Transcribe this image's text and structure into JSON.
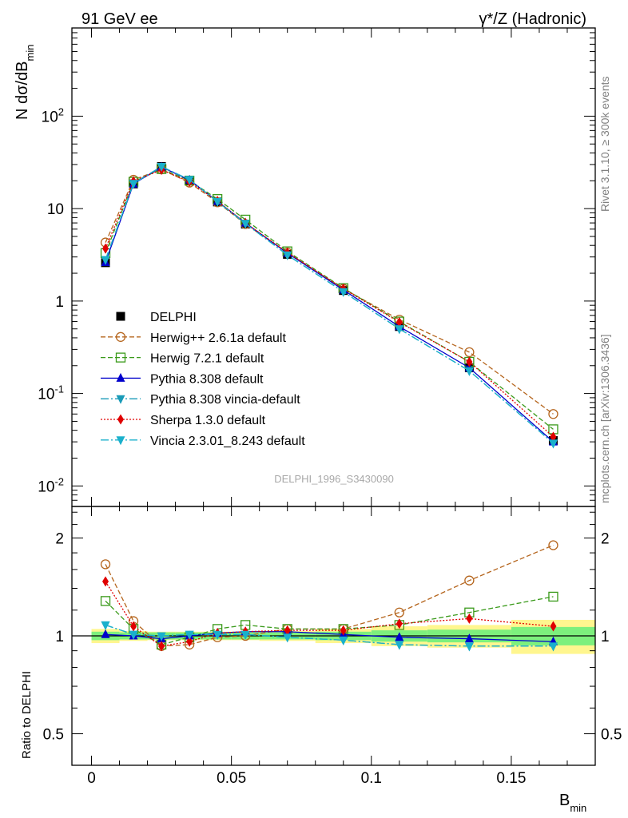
{
  "header": {
    "left_title": "91 GeV ee",
    "right_title": "γ*/Z (Hadronic)"
  },
  "side_labels": {
    "rivet": "Rivet 3.1.10, ≥ 300k events",
    "mcplots": "mcplots.cern.ch [arXiv:1306.3436]"
  },
  "watermark": "DELPHI_1996_S3430090",
  "colors": {
    "data": "#000000",
    "herwigpp": "#b5651d",
    "herwig7": "#3a9a1a",
    "pythia": "#0000cc",
    "vincia_default": "#1a9bb8",
    "sherpa": "#e00000",
    "vincia": "#1ab0cc",
    "band_inner": "#7df07d",
    "band_outer": "#fff68f"
  },
  "chart_data": [
    {
      "type": "line",
      "panel": "main",
      "ylabel": "N dσ/dB_min",
      "yscale": "log",
      "ylim": [
        0.006,
        900
      ],
      "xlim": [
        -0.007,
        0.18
      ],
      "ytick_labels": [
        "10^-2",
        "10^-1",
        "1",
        "10",
        "10^2"
      ],
      "x": [
        0.005,
        0.015,
        0.025,
        0.035,
        0.045,
        0.055,
        0.07,
        0.09,
        0.11,
        0.135,
        0.165
      ],
      "series": [
        {
          "name": "DELPHI",
          "values": [
            2.6,
            18.5,
            28.5,
            20.3,
            11.8,
            6.8,
            3.2,
            1.3,
            0.53,
            0.19,
            0.031
          ]
        },
        {
          "name": "Herwig++ 2.6.1a default",
          "values": [
            4.3,
            20.5,
            26.6,
            19.1,
            11.7,
            6.8,
            3.35,
            1.36,
            0.63,
            0.28,
            0.06
          ]
        },
        {
          "name": "Herwig 7.2.1 default",
          "values": [
            3.3,
            19.5,
            26.8,
            20.1,
            12.7,
            7.6,
            3.45,
            1.38,
            0.6,
            0.22,
            0.041
          ]
        },
        {
          "name": "Pythia 8.308 default",
          "values": [
            2.62,
            18.5,
            28.2,
            20.4,
            12.0,
            7.0,
            3.3,
            1.32,
            0.53,
            0.19,
            0.03
          ]
        },
        {
          "name": "Pythia 8.308 vincia-default",
          "values": [
            2.8,
            18.7,
            28.5,
            20.6,
            11.9,
            6.9,
            3.15,
            1.26,
            0.5,
            0.176,
            0.029
          ]
        },
        {
          "name": "Sherpa 1.3.0 default",
          "values": [
            3.7,
            19.8,
            26.3,
            19.5,
            12.1,
            7.0,
            3.35,
            1.36,
            0.59,
            0.22,
            0.034
          ]
        },
        {
          "name": "Vincia 2.3.01_8.243 default",
          "values": [
            2.8,
            18.7,
            28.5,
            20.6,
            11.9,
            6.9,
            3.15,
            1.26,
            0.5,
            0.176,
            0.029
          ]
        }
      ]
    },
    {
      "type": "line",
      "panel": "ratio",
      "ylabel": "Ratio to DELPHI",
      "xlabel": "B_min",
      "yscale": "log",
      "ylim": [
        0.4,
        2.5
      ],
      "xlim": [
        -0.007,
        0.18
      ],
      "yticks": [
        0.5,
        1,
        2
      ],
      "ytick_labels": [
        "0.5",
        "1",
        "2"
      ],
      "xticks": [
        0,
        0.05,
        0.1,
        0.15
      ],
      "xtick_labels": [
        "0",
        "0.05",
        "0.1",
        "0.15"
      ],
      "x": [
        0.005,
        0.015,
        0.025,
        0.035,
        0.045,
        0.055,
        0.07,
        0.09,
        0.11,
        0.135,
        0.165
      ],
      "bins": [
        [
          0,
          0.01
        ],
        [
          0.01,
          0.02
        ],
        [
          0.02,
          0.03
        ],
        [
          0.03,
          0.04
        ],
        [
          0.04,
          0.05
        ],
        [
          0.05,
          0.06
        ],
        [
          0.06,
          0.08
        ],
        [
          0.08,
          0.1
        ],
        [
          0.1,
          0.12
        ],
        [
          0.12,
          0.15
        ],
        [
          0.15,
          0.18
        ]
      ],
      "band_inner": [
        0.03,
        0.025,
        0.025,
        0.025,
        0.025,
        0.025,
        0.025,
        0.03,
        0.04,
        0.045,
        0.065
      ],
      "band_outer": [
        0.05,
        0.035,
        0.03,
        0.03,
        0.03,
        0.03,
        0.035,
        0.05,
        0.07,
        0.08,
        0.12
      ],
      "series": [
        {
          "name": "Herwig++ 2.6.1a default",
          "values": [
            1.66,
            1.11,
            0.93,
            0.94,
            0.99,
            1.0,
            1.05,
            1.05,
            1.18,
            1.48,
            1.9
          ]
        },
        {
          "name": "Herwig 7.2.1 default",
          "values": [
            1.28,
            1.05,
            0.94,
            0.99,
            1.05,
            1.08,
            1.05,
            1.05,
            1.08,
            1.18,
            1.32
          ]
        },
        {
          "name": "Pythia 8.308 default",
          "values": [
            1.01,
            1.0,
            0.98,
            1.0,
            1.02,
            1.03,
            1.03,
            1.01,
            0.99,
            0.98,
            0.96
          ]
        },
        {
          "name": "Pythia 8.308 vincia-default",
          "values": [
            1.08,
            1.01,
            1.0,
            1.01,
            1.01,
            1.01,
            0.99,
            0.97,
            0.94,
            0.93,
            0.93
          ]
        },
        {
          "name": "Sherpa 1.3.0 default",
          "values": [
            1.47,
            1.07,
            0.93,
            0.96,
            1.02,
            1.03,
            1.04,
            1.04,
            1.09,
            1.13,
            1.07
          ]
        },
        {
          "name": "Vincia 2.3.01_8.243 default",
          "values": [
            1.08,
            1.01,
            1.0,
            1.01,
            1.01,
            1.01,
            0.99,
            0.97,
            0.94,
            0.93,
            0.93
          ]
        }
      ]
    }
  ]
}
